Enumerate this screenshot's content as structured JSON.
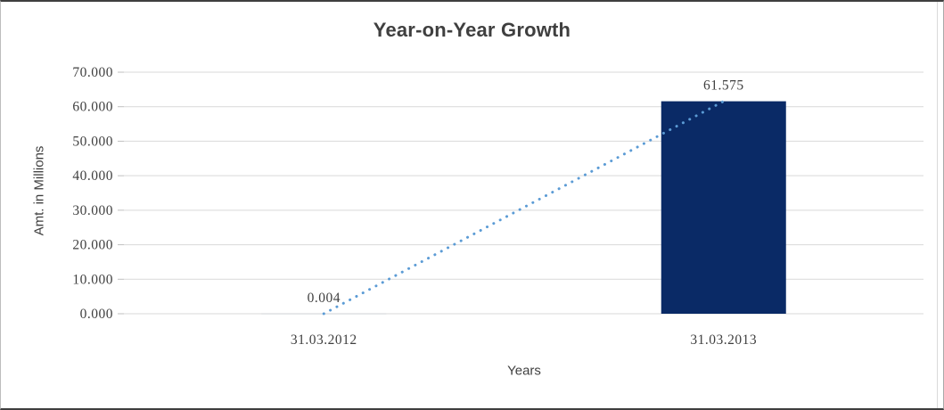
{
  "chart_data": {
    "type": "bar",
    "title": "Year-on-Year Growth",
    "xlabel": "Years",
    "ylabel": "Amt. in Millions",
    "categories": [
      "31.03.2012",
      "31.03.2013"
    ],
    "values": [
      0.004,
      61.575
    ],
    "data_labels": [
      "0.004",
      "61.575"
    ],
    "ytick_labels": [
      "70.000",
      "60.000",
      "50.000",
      "40.000",
      "30.000",
      "20.000",
      "10.000",
      "0.000"
    ],
    "ylim": [
      0,
      70
    ],
    "ytick_step": 10,
    "grid": true,
    "legend": "none",
    "trendline": {
      "type": "linear",
      "style": "dotted",
      "from": 0.004,
      "to": 61.575
    },
    "colors": {
      "bar": "#0a2a66",
      "trendline": "#5b9bd5",
      "gridline": "#d9d9d9",
      "tick": "#bfbfbf",
      "title_text": "#3f3f3f",
      "label_text": "#262626"
    }
  }
}
